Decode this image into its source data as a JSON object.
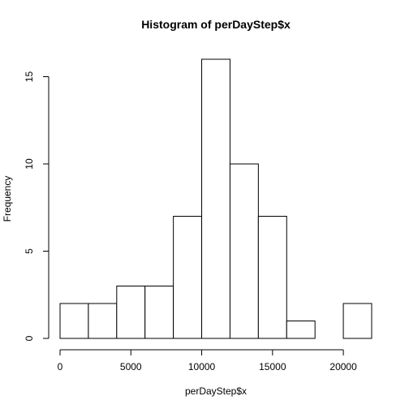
{
  "chart_data": {
    "type": "bar",
    "title": "Histogram of perDayStep$x",
    "xlabel": "perDayStep$x",
    "ylabel": "Frequency",
    "bins": [
      {
        "from": 0,
        "to": 2000,
        "count": 2
      },
      {
        "from": 2000,
        "to": 4000,
        "count": 2
      },
      {
        "from": 4000,
        "to": 6000,
        "count": 3
      },
      {
        "from": 6000,
        "to": 8000,
        "count": 3
      },
      {
        "from": 8000,
        "to": 10000,
        "count": 7
      },
      {
        "from": 10000,
        "to": 12000,
        "count": 16
      },
      {
        "from": 12000,
        "to": 14000,
        "count": 10
      },
      {
        "from": 14000,
        "to": 16000,
        "count": 7
      },
      {
        "from": 16000,
        "to": 18000,
        "count": 1
      },
      {
        "from": 18000,
        "to": 20000,
        "count": 0
      },
      {
        "from": 20000,
        "to": 22000,
        "count": 2
      }
    ],
    "xlim": [
      0,
      22000
    ],
    "ylim": [
      0,
      16
    ],
    "xticks": [
      0,
      5000,
      10000,
      15000,
      20000
    ],
    "yticks": [
      0,
      5,
      10,
      15
    ],
    "grid": false
  }
}
